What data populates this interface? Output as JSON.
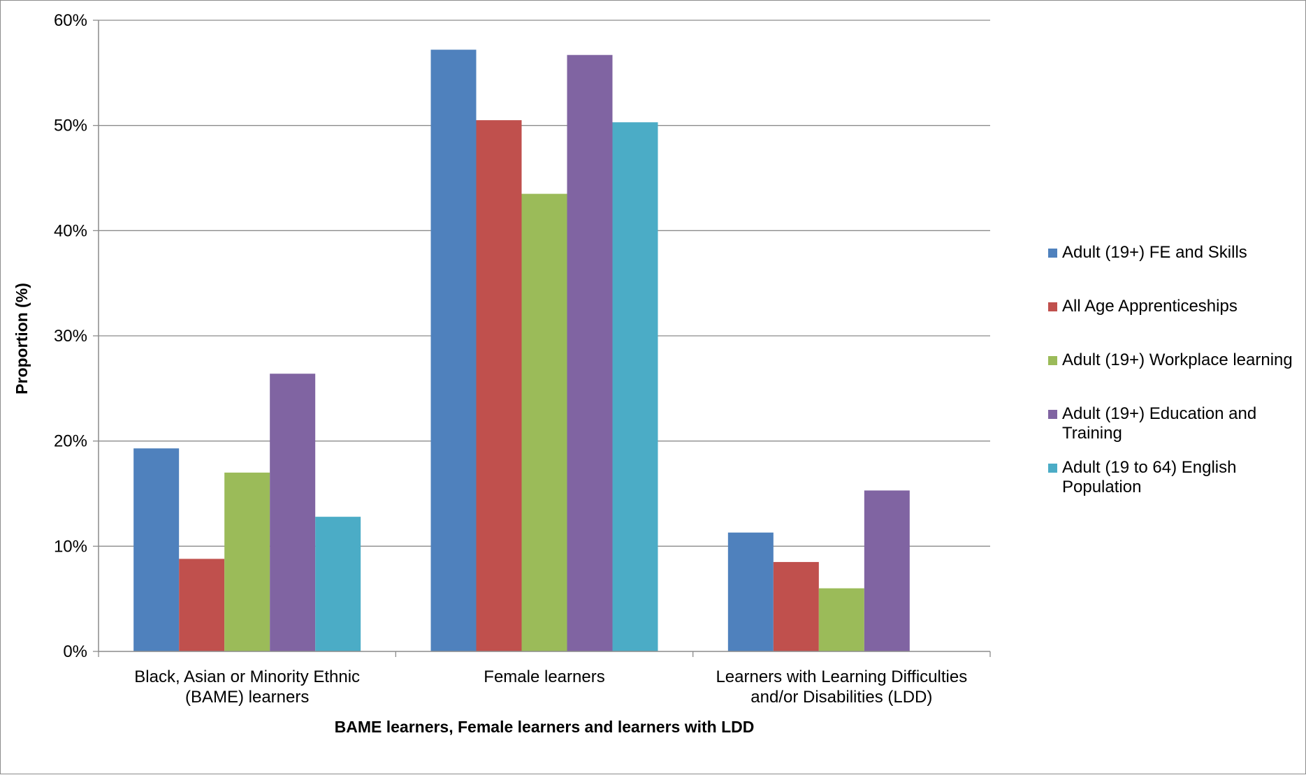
{
  "chart_data": {
    "type": "bar",
    "title": "",
    "xlabel": "BAME learners, Female learners and learners with LDD",
    "ylabel": "Proportion  (%)",
    "ylim": [
      0,
      60
    ],
    "yticks": [
      "0%",
      "10%",
      "20%",
      "30%",
      "40%",
      "50%",
      "60%"
    ],
    "categories": [
      [
        "Black, Asian or Minority Ethnic",
        "(BAME) learners"
      ],
      [
        "Female learners"
      ],
      [
        "Learners with Learning Difficulties",
        "and/or Disabilities (LDD)"
      ]
    ],
    "series": [
      {
        "name": [
          "Adult (19+) FE and Skills"
        ],
        "color": "#4F81BD",
        "values": [
          19.3,
          57.2,
          11.3
        ]
      },
      {
        "name": [
          "All Age Apprenticeships"
        ],
        "color": "#C0504D",
        "values": [
          8.8,
          50.5,
          8.5
        ]
      },
      {
        "name": [
          "Adult (19+) Workplace learning"
        ],
        "color": "#9BBB59",
        "values": [
          17.0,
          43.5,
          6.0
        ]
      },
      {
        "name": [
          "Adult (19+) Education and",
          "Training"
        ],
        "color": "#8064A2",
        "values": [
          26.4,
          56.7,
          15.3
        ]
      },
      {
        "name": [
          "Adult (19 to 64) English",
          "Population"
        ],
        "color": "#4BACC6",
        "values": [
          12.8,
          50.3,
          null
        ]
      }
    ],
    "grid": true,
    "legend_position": "right"
  }
}
